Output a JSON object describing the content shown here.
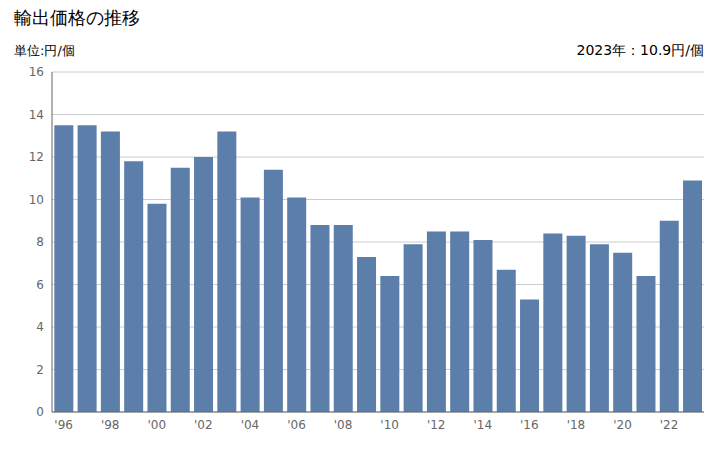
{
  "chart_data": {
    "type": "bar",
    "title": "輸出価格の推移",
    "y_label": "単位:円/個",
    "annotation": "2023年：10.9円/個",
    "categories": [
      "'96",
      null,
      "'98",
      null,
      "'00",
      null,
      "'02",
      null,
      "'04",
      null,
      "'06",
      null,
      "'08",
      null,
      "'10",
      null,
      "'12",
      null,
      "'14",
      null,
      "'16",
      null,
      "'18",
      null,
      "'20",
      null,
      "'22",
      null
    ],
    "values": [
      13.5,
      13.5,
      13.2,
      11.8,
      9.8,
      11.5,
      12.0,
      13.2,
      10.1,
      11.4,
      10.1,
      8.8,
      8.8,
      7.3,
      6.4,
      7.9,
      8.5,
      8.5,
      8.1,
      6.7,
      5.3,
      8.4,
      8.3,
      7.9,
      7.5,
      6.4,
      9.0,
      10.9
    ],
    "color": "#5b7faa",
    "ylim": [
      0,
      16
    ],
    "yticks": [
      0,
      2,
      4,
      6,
      8,
      10,
      12,
      14,
      16
    ],
    "grid": true
  }
}
